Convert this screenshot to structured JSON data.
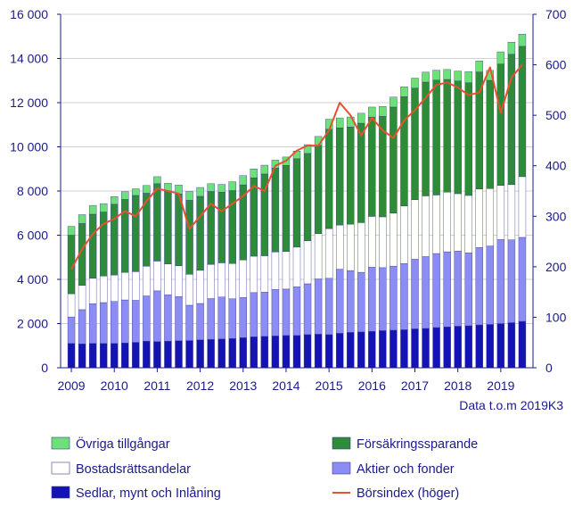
{
  "chart_data": {
    "type": "bar",
    "stacked": true,
    "title": "",
    "note": "Data t.o.m 2019K3",
    "x_tick_labels": [
      "2009",
      "2010",
      "2011",
      "2012",
      "2013",
      "2014",
      "2015",
      "2016",
      "2017",
      "2018",
      "2019"
    ],
    "left_axis": {
      "ylim": [
        0,
        16000
      ],
      "ticks": [
        "0",
        "2 000",
        "4 000",
        "6 000",
        "8 000",
        "10 000",
        "12 000",
        "14 000",
        "16 000"
      ]
    },
    "right_axis": {
      "ylim": [
        0,
        700
      ],
      "ticks": [
        "0",
        "100",
        "200",
        "300",
        "400",
        "500",
        "600",
        "700"
      ]
    },
    "quarters": [
      "2009K1",
      "2009K2",
      "2009K3",
      "2009K4",
      "2010K1",
      "2010K2",
      "2010K3",
      "2010K4",
      "2011K1",
      "2011K2",
      "2011K3",
      "2011K4",
      "2012K1",
      "2012K2",
      "2012K3",
      "2012K4",
      "2013K1",
      "2013K2",
      "2013K3",
      "2013K4",
      "2014K1",
      "2014K2",
      "2014K3",
      "2014K4",
      "2015K1",
      "2015K2",
      "2015K3",
      "2015K4",
      "2016K1",
      "2016K2",
      "2016K3",
      "2016K4",
      "2017K1",
      "2017K2",
      "2017K3",
      "2017K4",
      "2018K1",
      "2018K2",
      "2018K3",
      "2018K4",
      "2019K1",
      "2019K2",
      "2019K3"
    ],
    "series": [
      {
        "name": "Sedlar, mynt och Inlåning",
        "color": "#1414b4",
        "values": [
          1100,
          1080,
          1100,
          1100,
          1100,
          1120,
          1150,
          1200,
          1180,
          1200,
          1220,
          1230,
          1260,
          1280,
          1300,
          1320,
          1360,
          1400,
          1420,
          1440,
          1460,
          1460,
          1500,
          1520,
          1500,
          1560,
          1600,
          1620,
          1650,
          1680,
          1700,
          1720,
          1760,
          1780,
          1820,
          1850,
          1880,
          1900,
          1940,
          1960,
          2000,
          2040,
          2100
        ]
      },
      {
        "name": "Aktier och fonder",
        "color": "#8c8cf5",
        "values": [
          1200,
          1550,
          1800,
          1850,
          1900,
          1950,
          1900,
          2050,
          2300,
          2100,
          2000,
          1600,
          1650,
          1850,
          1900,
          1800,
          1820,
          2000,
          2000,
          2100,
          2100,
          2200,
          2300,
          2500,
          2550,
          2900,
          2800,
          2700,
          2900,
          2850,
          2900,
          3000,
          3150,
          3250,
          3350,
          3400,
          3400,
          3300,
          3500,
          3550,
          3800,
          3750,
          3800
        ]
      },
      {
        "name": "Bostadsrättsandelar",
        "color": "#ffffff",
        "values": [
          1050,
          1100,
          1150,
          1200,
          1200,
          1250,
          1300,
          1350,
          1350,
          1400,
          1400,
          1400,
          1500,
          1550,
          1550,
          1600,
          1700,
          1650,
          1650,
          1700,
          1700,
          1800,
          1950,
          2050,
          2250,
          2000,
          2100,
          2250,
          2300,
          2300,
          2400,
          2600,
          2700,
          2750,
          2650,
          2700,
          2600,
          2600,
          2650,
          2600,
          2450,
          2500,
          2750
        ]
      },
      {
        "name": "Försäkringssparande",
        "color": "#2e8b3a",
        "values": [
          2650,
          2800,
          2900,
          2900,
          3200,
          3300,
          3450,
          3300,
          3500,
          3300,
          3250,
          3350,
          3350,
          3300,
          3200,
          3300,
          3400,
          3550,
          3700,
          3800,
          3900,
          4000,
          3950,
          4000,
          4500,
          4400,
          4400,
          4500,
          4500,
          4550,
          4800,
          4950,
          5050,
          5150,
          5200,
          5100,
          5100,
          5100,
          5300,
          4900,
          5500,
          5900,
          5900
        ]
      },
      {
        "name": "Övriga tillgångar",
        "color": "#6ee07a",
        "values": [
          400,
          400,
          400,
          380,
          350,
          350,
          300,
          350,
          320,
          350,
          400,
          400,
          400,
          350,
          350,
          400,
          420,
          400,
          400,
          360,
          380,
          350,
          400,
          400,
          450,
          450,
          450,
          450,
          450,
          450,
          450,
          450,
          450,
          450,
          450,
          450,
          450,
          500,
          500,
          450,
          550,
          550,
          550
        ]
      }
    ],
    "line": {
      "name": "Börsindex (höger)",
      "color": "#e8512e",
      "axis": "right",
      "values": [
        195,
        235,
        265,
        285,
        295,
        310,
        300,
        330,
        355,
        350,
        345,
        275,
        300,
        325,
        310,
        325,
        340,
        360,
        350,
        400,
        410,
        430,
        440,
        440,
        470,
        525,
        500,
        460,
        495,
        470,
        455,
        490,
        510,
        535,
        560,
        565,
        555,
        540,
        545,
        595,
        505,
        575,
        600
      ]
    }
  },
  "legend": [
    {
      "label": "Övriga tillgångar",
      "kind": "box",
      "color": "#6ee07a"
    },
    {
      "label": "Försäkringssparande",
      "kind": "box",
      "color": "#2e8b3a"
    },
    {
      "label": "Bostadsrättsandelar",
      "kind": "box",
      "color": "#ffffff"
    },
    {
      "label": "Aktier och fonder",
      "kind": "box",
      "color": "#8c8cf5"
    },
    {
      "label": "Sedlar, mynt och Inlåning",
      "kind": "box",
      "color": "#1414b4"
    },
    {
      "label": "Börsindex (höger)",
      "kind": "line",
      "color": "#e8512e"
    }
  ]
}
